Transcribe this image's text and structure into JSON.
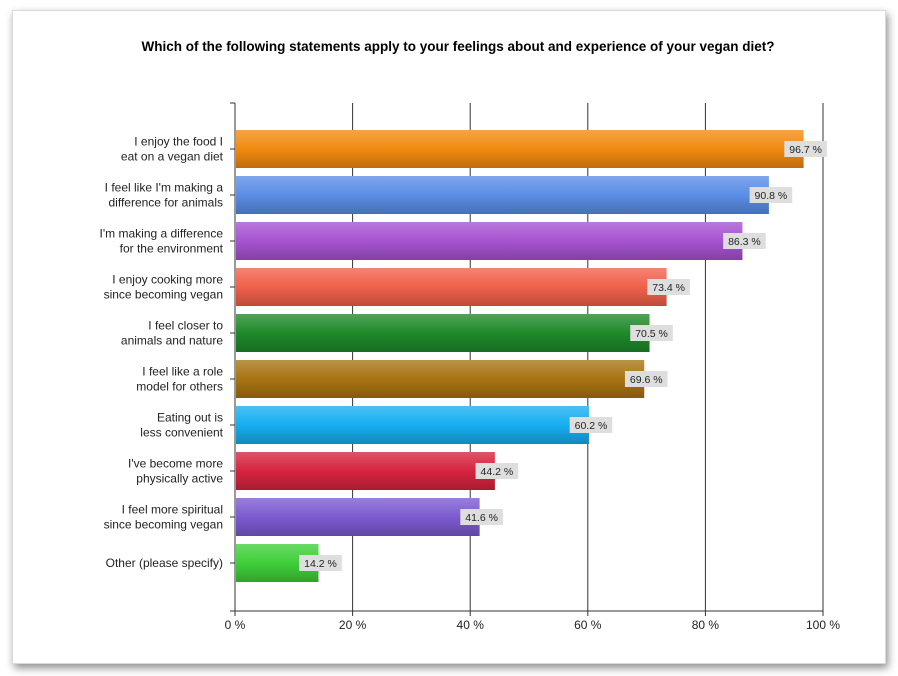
{
  "chart_data": {
    "type": "bar",
    "orientation": "horizontal",
    "title": "Which of the following statements apply to your feelings about and experience of your vegan diet?",
    "xlabel": "",
    "ylabel": "",
    "xlim": [
      0,
      100
    ],
    "grid": true,
    "tick_labels": [
      "0 %",
      "20 %",
      "40 %",
      "60 %",
      "80 %",
      "100 %"
    ],
    "tick_values": [
      0,
      20,
      40,
      60,
      80,
      100
    ],
    "categories": [
      [
        "I enjoy the food I",
        "eat on a vegan diet"
      ],
      [
        "I feel like I'm making a",
        "difference for animals"
      ],
      [
        "I'm making a difference",
        "for the environment"
      ],
      [
        "I enjoy cooking more",
        "since becoming vegan"
      ],
      [
        "I feel closer to",
        "animals and nature"
      ],
      [
        "I feel like a role",
        "model for others"
      ],
      [
        "Eating out is",
        "less convenient"
      ],
      [
        "I've become more",
        "physically active"
      ],
      [
        "I feel more spiritual",
        "since becoming vegan"
      ],
      [
        "Other (please specify)"
      ]
    ],
    "values": [
      96.7,
      90.8,
      86.3,
      73.4,
      70.5,
      69.6,
      60.2,
      44.2,
      41.6,
      14.2
    ],
    "value_labels": [
      "96.7 %",
      "90.8 %",
      "86.3 %",
      "73.4 %",
      "70.5 %",
      "69.6 %",
      "60.2 %",
      "44.2 %",
      "41.6 %",
      "14.2 %"
    ],
    "colors": [
      "#f28a10",
      "#5b8ee6",
      "#a653d0",
      "#f0614a",
      "#1f8a2a",
      "#a97412",
      "#17aef0",
      "#d6243f",
      "#7c5bd0",
      "#3fcf3a"
    ]
  }
}
